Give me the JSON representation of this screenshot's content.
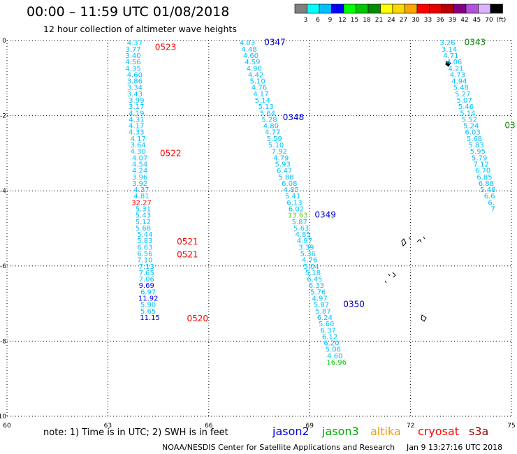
{
  "header": {
    "title": "00:00 – 11:59 UTC 01/08/2018",
    "subtitle": "12 hour collection of altimeter wave heights"
  },
  "legend": {
    "unit": "(ft)",
    "bins": [
      {
        "label": "3",
        "color": "#808080"
      },
      {
        "label": "6",
        "color": "#00ffff"
      },
      {
        "label": "9",
        "color": "#00bfff"
      },
      {
        "label": "12",
        "color": "#0000ff"
      },
      {
        "label": "15",
        "color": "#00ff00"
      },
      {
        "label": "18",
        "color": "#00c800"
      },
      {
        "label": "21",
        "color": "#008c00"
      },
      {
        "label": "24",
        "color": "#ffff00"
      },
      {
        "label": "27",
        "color": "#ffd700"
      },
      {
        "label": "30",
        "color": "#ffa500"
      },
      {
        "label": "33",
        "color": "#ff0000"
      },
      {
        "label": "36",
        "color": "#e60000"
      },
      {
        "label": "39",
        "color": "#b40000"
      },
      {
        "label": "42",
        "color": "#800080"
      },
      {
        "label": "45",
        "color": "#b450dc"
      },
      {
        "label": "70",
        "color": "#dcb4ff"
      },
      {
        "label": "",
        "color": "#000000"
      }
    ]
  },
  "chart_data": {
    "type": "scatter",
    "xlim": [
      60,
      75
    ],
    "ylim": [
      -10,
      0
    ],
    "x_ticks": [
      "60",
      "63",
      "66",
      "69",
      "72",
      "75"
    ],
    "y_ticks": [
      "0",
      "-2",
      "-4",
      "-6",
      "-8",
      "-10"
    ],
    "grid": true,
    "tracks": [
      {
        "points": [
          {
            "x": 63.8,
            "y": -0.05,
            "v": "4.37",
            "color": "#00bfff"
          },
          {
            "x": 63.75,
            "y": -0.22,
            "v": "3.77",
            "color": "#00bfff"
          },
          {
            "x": 63.75,
            "y": -0.39,
            "v": "3.40",
            "color": "#00bfff"
          },
          {
            "x": 63.75,
            "y": -0.56,
            "v": "4.56",
            "color": "#00bfff"
          },
          {
            "x": 63.75,
            "y": -0.73,
            "v": "4.35",
            "color": "#00bfff"
          },
          {
            "x": 63.8,
            "y": -0.9,
            "v": "4.60",
            "color": "#00bfff"
          },
          {
            "x": 63.8,
            "y": -1.07,
            "v": "3.86",
            "color": "#00bfff"
          },
          {
            "x": 63.8,
            "y": -1.24,
            "v": "3.34",
            "color": "#00bfff"
          },
          {
            "x": 63.8,
            "y": -1.41,
            "v": "3.43",
            "color": "#00bfff"
          },
          {
            "x": 63.85,
            "y": -1.58,
            "v": "3.99",
            "color": "#00bfff"
          },
          {
            "x": 63.85,
            "y": -1.75,
            "v": "3.17",
            "color": "#00bfff"
          },
          {
            "x": 63.85,
            "y": -1.92,
            "v": "4.19",
            "color": "#00bfff"
          },
          {
            "x": 63.85,
            "y": -2.09,
            "v": "4.31",
            "color": "#00bfff"
          },
          {
            "x": 63.85,
            "y": -2.26,
            "v": "4.17",
            "color": "#00bfff"
          },
          {
            "x": 63.85,
            "y": -2.43,
            "v": "4.33",
            "color": "#00bfff"
          },
          {
            "x": 63.9,
            "y": -2.6,
            "v": "4.17",
            "color": "#00bfff"
          },
          {
            "x": 63.9,
            "y": -2.77,
            "v": "3.64",
            "color": "#00bfff"
          },
          {
            "x": 63.9,
            "y": -2.94,
            "v": "4.30",
            "color": "#00bfff"
          },
          {
            "x": 63.95,
            "y": -3.11,
            "v": "4.07",
            "color": "#00bfff"
          },
          {
            "x": 63.95,
            "y": -3.28,
            "v": "4.54",
            "color": "#00bfff"
          },
          {
            "x": 63.95,
            "y": -3.45,
            "v": "4.24",
            "color": "#00bfff"
          },
          {
            "x": 63.95,
            "y": -3.62,
            "v": "3.96",
            "color": "#00bfff"
          },
          {
            "x": 63.95,
            "y": -3.79,
            "v": "3.92",
            "color": "#00bfff"
          },
          {
            "x": 64.0,
            "y": -3.96,
            "v": "4.37",
            "color": "#00bfff"
          },
          {
            "x": 64.0,
            "y": -4.13,
            "v": "4.81",
            "color": "#00bfff"
          },
          {
            "x": 64.0,
            "y": -4.3,
            "v": "32.27",
            "color": "#ff0000"
          },
          {
            "x": 64.05,
            "y": -4.47,
            "v": "5.31",
            "color": "#00bfff"
          },
          {
            "x": 64.05,
            "y": -4.64,
            "v": "5.43",
            "color": "#00bfff"
          },
          {
            "x": 64.05,
            "y": -4.81,
            "v": "5.12",
            "color": "#00bfff"
          },
          {
            "x": 64.05,
            "y": -4.98,
            "v": "5.68",
            "color": "#00bfff"
          },
          {
            "x": 64.1,
            "y": -5.15,
            "v": "5.44",
            "color": "#00bfff"
          },
          {
            "x": 64.1,
            "y": -5.32,
            "v": "5.83",
            "color": "#00bfff"
          },
          {
            "x": 64.1,
            "y": -5.49,
            "v": "6.63",
            "color": "#00bfff"
          },
          {
            "x": 64.1,
            "y": -5.66,
            "v": "6.56",
            "color": "#00bfff"
          },
          {
            "x": 64.1,
            "y": -5.83,
            "v": "7.10",
            "color": "#00bfff"
          },
          {
            "x": 64.15,
            "y": -6.0,
            "v": "7.13",
            "color": "#00bfff"
          },
          {
            "x": 64.15,
            "y": -6.17,
            "v": "7.65",
            "color": "#00bfff"
          },
          {
            "x": 64.15,
            "y": -6.34,
            "v": "7.06",
            "color": "#00bfff"
          },
          {
            "x": 64.15,
            "y": -6.51,
            "v": "9.69",
            "color": "#0000ff"
          },
          {
            "x": 64.2,
            "y": -6.68,
            "v": "6.97",
            "color": "#00bfff"
          },
          {
            "x": 64.2,
            "y": -6.85,
            "v": "11.92",
            "color": "#0000ff"
          },
          {
            "x": 64.2,
            "y": -7.02,
            "v": "5.90",
            "color": "#00bfff"
          },
          {
            "x": 64.2,
            "y": -7.19,
            "v": "5.65",
            "color": "#00bfff"
          },
          {
            "x": 64.25,
            "y": -7.36,
            "v": "11.15",
            "color": "#0000ff"
          }
        ]
      },
      {
        "points": [
          {
            "x": 67.15,
            "y": -0.05,
            "v": "4.03",
            "color": "#00bfff"
          },
          {
            "x": 67.2,
            "y": -0.22,
            "v": "4.48",
            "color": "#00bfff"
          },
          {
            "x": 67.25,
            "y": -0.39,
            "v": "4.60",
            "color": "#00bfff"
          },
          {
            "x": 67.3,
            "y": -0.56,
            "v": "4.59",
            "color": "#00bfff"
          },
          {
            "x": 67.35,
            "y": -0.73,
            "v": "4.90",
            "color": "#00bfff"
          },
          {
            "x": 67.4,
            "y": -0.9,
            "v": "4.42",
            "color": "#00bfff"
          },
          {
            "x": 67.45,
            "y": -1.07,
            "v": "5.10",
            "color": "#00bfff"
          },
          {
            "x": 67.5,
            "y": -1.24,
            "v": "4.76",
            "color": "#00bfff"
          },
          {
            "x": 67.55,
            "y": -1.41,
            "v": "4.17",
            "color": "#00bfff"
          },
          {
            "x": 67.6,
            "y": -1.58,
            "v": "5.14",
            "color": "#00bfff"
          },
          {
            "x": 67.7,
            "y": -1.75,
            "v": "5.13",
            "color": "#00bfff"
          },
          {
            "x": 67.75,
            "y": -1.92,
            "v": "5.64",
            "color": "#00bfff"
          },
          {
            "x": 67.8,
            "y": -2.09,
            "v": "5.28",
            "color": "#00bfff"
          },
          {
            "x": 67.85,
            "y": -2.26,
            "v": "4.80",
            "color": "#00bfff"
          },
          {
            "x": 67.9,
            "y": -2.43,
            "v": "4.77",
            "color": "#00bfff"
          },
          {
            "x": 67.95,
            "y": -2.6,
            "v": "5.59",
            "color": "#00bfff"
          },
          {
            "x": 68.0,
            "y": -2.77,
            "v": "5.10",
            "color": "#00bfff"
          },
          {
            "x": 68.1,
            "y": -2.94,
            "v": "7.92",
            "color": "#00bfff"
          },
          {
            "x": 68.15,
            "y": -3.11,
            "v": "4.79",
            "color": "#00bfff"
          },
          {
            "x": 68.2,
            "y": -3.28,
            "v": "5.93",
            "color": "#00bfff"
          },
          {
            "x": 68.25,
            "y": -3.45,
            "v": "6.47",
            "color": "#00bfff"
          },
          {
            "x": 68.3,
            "y": -3.62,
            "v": "5.88",
            "color": "#00bfff"
          },
          {
            "x": 68.4,
            "y": -3.79,
            "v": "6.08",
            "color": "#00bfff"
          },
          {
            "x": 68.45,
            "y": -3.96,
            "v": "4.85",
            "color": "#00bfff"
          },
          {
            "x": 68.5,
            "y": -4.13,
            "v": "5.41",
            "color": "#00bfff"
          },
          {
            "x": 68.55,
            "y": -4.3,
            "v": "6.13",
            "color": "#00bfff"
          },
          {
            "x": 68.6,
            "y": -4.47,
            "v": "6.02",
            "color": "#00bfff"
          },
          {
            "x": 68.65,
            "y": -4.64,
            "v": "13.63",
            "color": "#66cc33"
          },
          {
            "x": 68.7,
            "y": -4.81,
            "v": "5.87",
            "color": "#00bfff"
          },
          {
            "x": 68.75,
            "y": -4.98,
            "v": "5.63",
            "color": "#00bfff"
          },
          {
            "x": 68.8,
            "y": -5.15,
            "v": "4.85",
            "color": "#00bfff"
          },
          {
            "x": 68.85,
            "y": -5.32,
            "v": "4.97",
            "color": "#00bfff"
          },
          {
            "x": 68.9,
            "y": -5.49,
            "v": "3.39",
            "color": "#00bfff"
          },
          {
            "x": 68.95,
            "y": -5.66,
            "v": "5.36",
            "color": "#00bfff"
          },
          {
            "x": 69.0,
            "y": -5.83,
            "v": "4.76",
            "color": "#00bfff"
          },
          {
            "x": 69.05,
            "y": -6.0,
            "v": "5.04",
            "color": "#00bfff"
          },
          {
            "x": 69.1,
            "y": -6.17,
            "v": "5.18",
            "color": "#00bfff"
          },
          {
            "x": 69.15,
            "y": -6.34,
            "v": "6.45",
            "color": "#00bfff"
          },
          {
            "x": 69.2,
            "y": -6.51,
            "v": "6.33",
            "color": "#00bfff"
          },
          {
            "x": 69.25,
            "y": -6.68,
            "v": "5.76",
            "color": "#00bfff"
          },
          {
            "x": 69.3,
            "y": -6.85,
            "v": "4.97",
            "color": "#00bfff"
          },
          {
            "x": 69.35,
            "y": -7.02,
            "v": "5.87",
            "color": "#00bfff"
          },
          {
            "x": 69.4,
            "y": -7.19,
            "v": "5.87",
            "color": "#00bfff"
          },
          {
            "x": 69.45,
            "y": -7.36,
            "v": "6.24",
            "color": "#00bfff"
          },
          {
            "x": 69.5,
            "y": -7.53,
            "v": "5.60",
            "color": "#00bfff"
          },
          {
            "x": 69.55,
            "y": -7.7,
            "v": "6.37",
            "color": "#00bfff"
          },
          {
            "x": 69.6,
            "y": -7.87,
            "v": "6.12",
            "color": "#00bfff"
          },
          {
            "x": 69.65,
            "y": -8.04,
            "v": "6.20",
            "color": "#00bfff"
          },
          {
            "x": 69.7,
            "y": -8.21,
            "v": "5.06",
            "color": "#00bfff"
          },
          {
            "x": 69.75,
            "y": -8.38,
            "v": "4.60",
            "color": "#00bfff"
          },
          {
            "x": 69.8,
            "y": -8.55,
            "v": "16.96",
            "color": "#00c800"
          }
        ]
      },
      {
        "points": [
          {
            "x": 73.1,
            "y": -0.05,
            "v": "3.26",
            "color": "#00bfff"
          },
          {
            "x": 73.15,
            "y": -0.22,
            "v": "3.14",
            "color": "#00bfff"
          },
          {
            "x": 73.2,
            "y": -0.39,
            "v": "4.71",
            "color": "#00bfff"
          },
          {
            "x": 73.3,
            "y": -0.56,
            "v": "4.06",
            "color": "#00bfff"
          },
          {
            "x": 73.35,
            "y": -0.73,
            "v": "4.21",
            "color": "#00bfff"
          },
          {
            "x": 73.4,
            "y": -0.9,
            "v": "4.73",
            "color": "#00bfff"
          },
          {
            "x": 73.45,
            "y": -1.07,
            "v": "4.94",
            "color": "#00bfff"
          },
          {
            "x": 73.5,
            "y": -1.24,
            "v": "5.48",
            "color": "#00bfff"
          },
          {
            "x": 73.55,
            "y": -1.41,
            "v": "5.27",
            "color": "#00bfff"
          },
          {
            "x": 73.6,
            "y": -1.58,
            "v": "5.07",
            "color": "#00bfff"
          },
          {
            "x": 73.65,
            "y": -1.75,
            "v": "5.46",
            "color": "#00bfff"
          },
          {
            "x": 73.7,
            "y": -1.92,
            "v": "5.14",
            "color": "#00bfff"
          },
          {
            "x": 73.75,
            "y": -2.09,
            "v": "5.52",
            "color": "#00bfff"
          },
          {
            "x": 73.8,
            "y": -2.26,
            "v": "5.24",
            "color": "#00bfff"
          },
          {
            "x": 73.85,
            "y": -2.43,
            "v": "6.03",
            "color": "#00bfff"
          },
          {
            "x": 73.9,
            "y": -2.6,
            "v": "5.68",
            "color": "#00bfff"
          },
          {
            "x": 73.95,
            "y": -2.77,
            "v": "5.83",
            "color": "#00bfff"
          },
          {
            "x": 74.0,
            "y": -2.94,
            "v": "5.95",
            "color": "#00bfff"
          },
          {
            "x": 74.05,
            "y": -3.11,
            "v": "5.79",
            "color": "#00bfff"
          },
          {
            "x": 74.1,
            "y": -3.28,
            "v": "7.12",
            "color": "#00bfff"
          },
          {
            "x": 74.15,
            "y": -3.45,
            "v": "6.70",
            "color": "#00bfff"
          },
          {
            "x": 74.2,
            "y": -3.62,
            "v": "6.85",
            "color": "#00bfff"
          },
          {
            "x": 74.25,
            "y": -3.79,
            "v": "6.88",
            "color": "#00bfff"
          },
          {
            "x": 74.3,
            "y": -3.96,
            "v": "5.48",
            "color": "#00bfff"
          },
          {
            "x": 74.35,
            "y": -4.13,
            "v": "6.6",
            "color": "#00bfff"
          },
          {
            "x": 74.4,
            "y": -4.3,
            "v": "6.",
            "color": "#00bfff"
          },
          {
            "x": 74.45,
            "y": -4.47,
            "v": "7",
            "color": "#00bfff"
          }
        ]
      }
    ],
    "pass_labels": [
      {
        "x": 64.4,
        "y": -0.18,
        "text": "0523",
        "color": "#ff0000"
      },
      {
        "x": 64.55,
        "y": -3.0,
        "text": "0522",
        "color": "#ff0000"
      },
      {
        "x": 65.05,
        "y": -5.35,
        "text": "0521",
        "color": "#ff0000"
      },
      {
        "x": 65.05,
        "y": -5.7,
        "text": "0521",
        "color": "#ff0000"
      },
      {
        "x": 65.35,
        "y": -7.4,
        "text": "0520",
        "color": "#ff0000"
      },
      {
        "x": 67.65,
        "y": -0.05,
        "text": "0347",
        "color": "#0000cc"
      },
      {
        "x": 68.2,
        "y": -2.04,
        "text": "0348",
        "color": "#0000cc"
      },
      {
        "x": 69.15,
        "y": -4.64,
        "text": "0349",
        "color": "#0000cc"
      },
      {
        "x": 70.0,
        "y": -7.02,
        "text": "0350",
        "color": "#0000cc"
      },
      {
        "x": 73.6,
        "y": -0.05,
        "text": "0343",
        "color": "#008c00"
      },
      {
        "x": 74.8,
        "y": -2.26,
        "text": "03",
        "color": "#008c00"
      }
    ]
  },
  "footer": {
    "note": "note: 1) Time is in UTC; 2) SWH is in feet",
    "missions": [
      {
        "label": "jason2",
        "color": "#0000dd"
      },
      {
        "label": "jason3",
        "color": "#00aa00"
      },
      {
        "label": "altika",
        "color": "#ff9900"
      },
      {
        "label": "cryosat",
        "color": "#ff0000"
      },
      {
        "label": "s3a",
        "color": "#990000"
      }
    ],
    "credit": "NOAA/NESDIS Center for Satellite Applications and Research",
    "timestamp": "Jan  9 13:27:16 UTC 2018"
  }
}
